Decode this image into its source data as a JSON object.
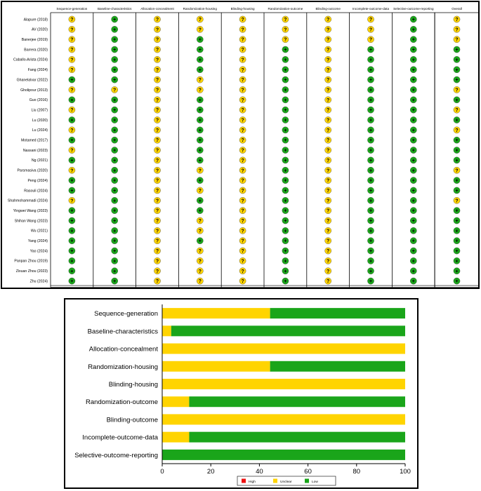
{
  "colors": {
    "low": "#1aa51a",
    "unclear": "#ffd400",
    "high": "#ee1111",
    "grid_line": "#000000"
  },
  "symbols": {
    "low": "+",
    "unclear": "?",
    "high": "-"
  },
  "chart_data": [
    {
      "type": "table",
      "columns": [
        "Sequence-generation",
        "Baseline-characteristics",
        "Allocation-concealment",
        "Randomization-housing",
        "Blinding-housing",
        "Randomization-outcome",
        "Blinding-outcome",
        "Incomplete-outcome-data",
        "Selective-outcome-reporting"
      ],
      "overall_label": "Overall",
      "rows": [
        {
          "study": "Alapure (2018)",
          "judgements": [
            "U",
            "L",
            "U",
            "U",
            "U",
            "U",
            "U",
            "U",
            "L"
          ],
          "overall": "U"
        },
        {
          "study": "AV (2020)",
          "judgements": [
            "U",
            "L",
            "U",
            "U",
            "U",
            "U",
            "U",
            "U",
            "L"
          ],
          "overall": "U"
        },
        {
          "study": "Banerjee (2019)",
          "judgements": [
            "U",
            "L",
            "U",
            "L",
            "U",
            "U",
            "U",
            "U",
            "L"
          ],
          "overall": "U"
        },
        {
          "study": "Barrera (2020)",
          "judgements": [
            "U",
            "L",
            "U",
            "L",
            "U",
            "L",
            "U",
            "L",
            "L"
          ],
          "overall": "L"
        },
        {
          "study": "Caballo-Arista (2024)",
          "judgements": [
            "U",
            "L",
            "U",
            "L",
            "U",
            "L",
            "U",
            "L",
            "L"
          ],
          "overall": "L"
        },
        {
          "study": "Fang (2024)",
          "judgements": [
            "U",
            "L",
            "U",
            "L",
            "U",
            "L",
            "U",
            "L",
            "L"
          ],
          "overall": "L"
        },
        {
          "study": "Ghanelalvar (2022)",
          "judgements": [
            "L",
            "L",
            "U",
            "U",
            "U",
            "L",
            "U",
            "L",
            "L"
          ],
          "overall": "L"
        },
        {
          "study": "Gholipour (2013)",
          "judgements": [
            "U",
            "U",
            "U",
            "U",
            "U",
            "L",
            "U",
            "L",
            "L"
          ],
          "overall": "U"
        },
        {
          "study": "Guo (2016)",
          "judgements": [
            "L",
            "L",
            "U",
            "L",
            "U",
            "L",
            "U",
            "L",
            "L"
          ],
          "overall": "L"
        },
        {
          "study": "Liu (2007)",
          "judgements": [
            "U",
            "L",
            "U",
            "L",
            "U",
            "L",
            "U",
            "L",
            "L"
          ],
          "overall": "U"
        },
        {
          "study": "Lu (2020)",
          "judgements": [
            "L",
            "L",
            "U",
            "L",
            "U",
            "L",
            "U",
            "L",
            "L"
          ],
          "overall": "L"
        },
        {
          "study": "Lu (2024)",
          "judgements": [
            "U",
            "L",
            "U",
            "L",
            "U",
            "L",
            "U",
            "L",
            "L"
          ],
          "overall": "U"
        },
        {
          "study": "Motamed (2017)",
          "judgements": [
            "L",
            "L",
            "U",
            "L",
            "U",
            "L",
            "U",
            "L",
            "L"
          ],
          "overall": "L"
        },
        {
          "study": "Nassani (2023)",
          "judgements": [
            "U",
            "L",
            "U",
            "L",
            "U",
            "L",
            "U",
            "L",
            "L"
          ],
          "overall": "L"
        },
        {
          "study": "Ng (2021)",
          "judgements": [
            "L",
            "L",
            "U",
            "L",
            "U",
            "L",
            "U",
            "L",
            "L"
          ],
          "overall": "L"
        },
        {
          "study": "Parsmasiva (2020)",
          "judgements": [
            "U",
            "L",
            "U",
            "U",
            "U",
            "L",
            "U",
            "L",
            "L"
          ],
          "overall": "U"
        },
        {
          "study": "Peng (2024)",
          "judgements": [
            "L",
            "L",
            "U",
            "L",
            "U",
            "L",
            "U",
            "L",
            "L"
          ],
          "overall": "L"
        },
        {
          "study": "Rasouli (2024)",
          "judgements": [
            "L",
            "L",
            "U",
            "U",
            "U",
            "L",
            "U",
            "L",
            "L"
          ],
          "overall": "L"
        },
        {
          "study": "Shahmohammadi (2024)",
          "judgements": [
            "U",
            "L",
            "U",
            "L",
            "U",
            "L",
            "U",
            "L",
            "L"
          ],
          "overall": "U"
        },
        {
          "study": "Yingwei Wang (2023)",
          "judgements": [
            "L",
            "L",
            "U",
            "L",
            "U",
            "L",
            "U",
            "L",
            "L"
          ],
          "overall": "L"
        },
        {
          "study": "Shihan Wang (2023)",
          "judgements": [
            "L",
            "L",
            "U",
            "U",
            "U",
            "L",
            "U",
            "L",
            "L"
          ],
          "overall": "L"
        },
        {
          "study": "Wu (2021)",
          "judgements": [
            "L",
            "L",
            "U",
            "U",
            "U",
            "L",
            "U",
            "L",
            "L"
          ],
          "overall": "L"
        },
        {
          "study": "Yang (2024)",
          "judgements": [
            "L",
            "L",
            "U",
            "L",
            "U",
            "L",
            "U",
            "L",
            "L"
          ],
          "overall": "L"
        },
        {
          "study": "Yao (2024)",
          "judgements": [
            "L",
            "L",
            "U",
            "U",
            "U",
            "L",
            "U",
            "L",
            "L"
          ],
          "overall": "L"
        },
        {
          "study": "Panpan Zhou (2019)",
          "judgements": [
            "L",
            "L",
            "U",
            "U",
            "U",
            "L",
            "U",
            "L",
            "L"
          ],
          "overall": "L"
        },
        {
          "study": "Zixuan Zhou (2023)",
          "judgements": [
            "L",
            "L",
            "U",
            "U",
            "U",
            "L",
            "U",
            "L",
            "L"
          ],
          "overall": "L"
        },
        {
          "study": "Zhu (2024)",
          "judgements": [
            "L",
            "L",
            "U",
            "U",
            "U",
            "L",
            "U",
            "L",
            "L"
          ],
          "overall": "L"
        }
      ]
    },
    {
      "type": "bar",
      "orientation": "horizontal",
      "stacked": true,
      "categories": [
        "Sequence-generation",
        "Baseline-characteristics",
        "Allocation-concealment",
        "Randomization-housing",
        "Blinding-housing",
        "Randomization-outcome",
        "Blinding-outcome",
        "Incomplete-outcome-data",
        "Selective-outcome-reporting"
      ],
      "series": [
        {
          "name": "High",
          "color": "#ee1111",
          "values": [
            0,
            0,
            0,
            0,
            0,
            0,
            0,
            0,
            0
          ]
        },
        {
          "name": "Unclear",
          "color": "#ffd400",
          "values": [
            44.4,
            3.7,
            100,
            44.4,
            100,
            11.1,
            100,
            11.1,
            0
          ]
        },
        {
          "name": "Low",
          "color": "#1aa51a",
          "values": [
            55.6,
            96.3,
            0,
            55.6,
            0,
            88.9,
            0,
            88.9,
            100
          ]
        }
      ],
      "xlim": [
        0,
        100
      ],
      "xticks": [
        0,
        20,
        40,
        60,
        80,
        100
      ],
      "legend_position": "bottom"
    }
  ]
}
